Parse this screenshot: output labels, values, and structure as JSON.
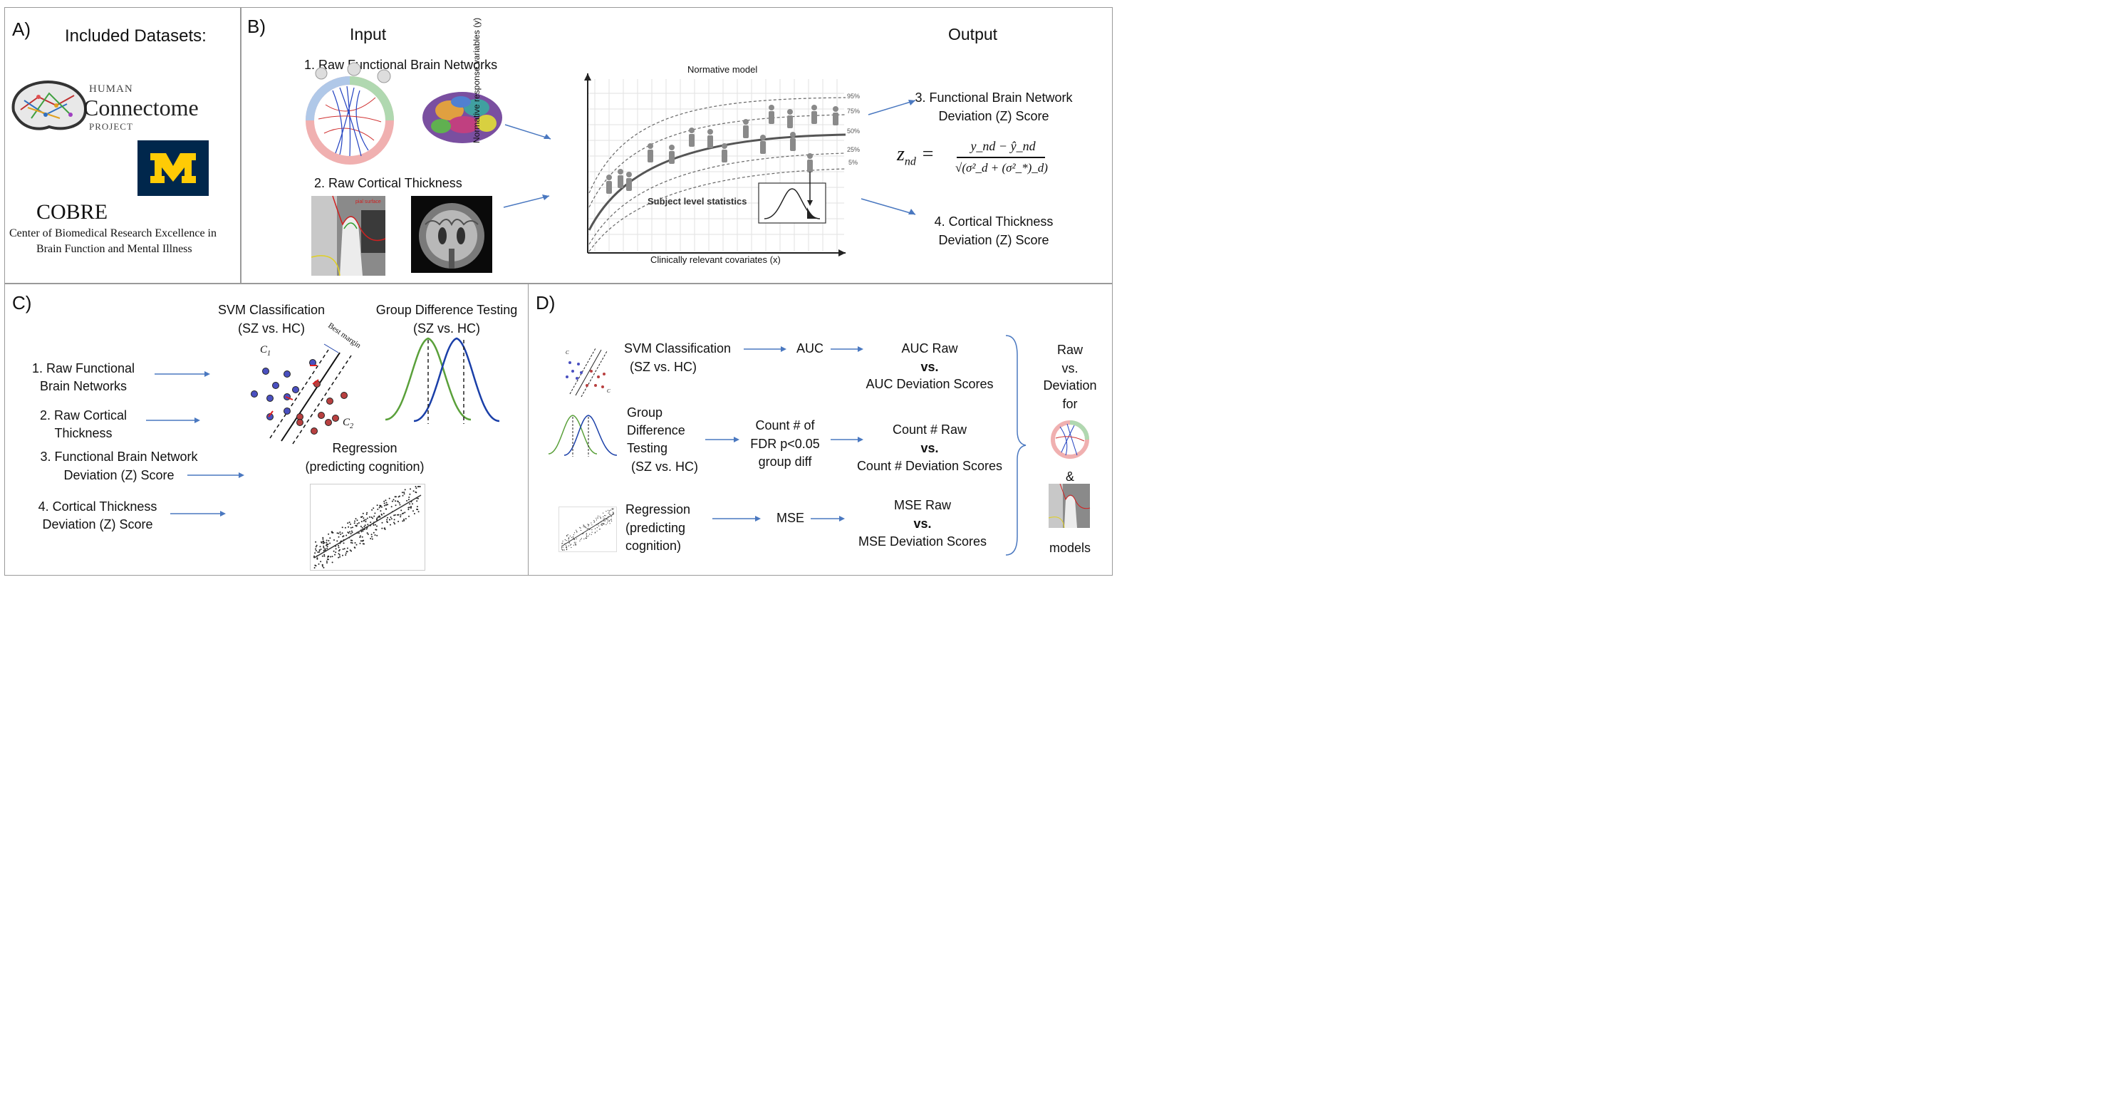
{
  "panels": {
    "a": {
      "label": "A)",
      "title": "Included Datasets:",
      "hcp": {
        "line1": "HUMAN",
        "line2": "Connectome",
        "line3": "PROJECT"
      },
      "cobre": {
        "title": "COBRE",
        "line1": "Center of Biomedical Research Excellence in",
        "line2": "Brain Function and Mental Illness"
      }
    },
    "b": {
      "label": "B)",
      "input": "Input",
      "output": "Output",
      "item1": "1. Raw Functional Brain Networks",
      "item2": "2. Raw Cortical Thickness",
      "item2_tag": "pial surface",
      "norm_title": "Normative model",
      "y_axis": "Normative response variables (y)",
      "x_axis": "Clinically relevant covariates (x)",
      "percentiles": [
        "95%",
        "75%",
        "50%",
        "25%",
        "5%"
      ],
      "subject_stats": "Subject level statistics",
      "out3_l1": "3. Functional Brain Network",
      "out3_l2": "Deviation (Z) Score",
      "out4_l1": "4. Cortical Thickness",
      "out4_l2": "Deviation (Z) Score",
      "formula": {
        "lhs": "z",
        "lhs_sub": "nd",
        "num": "y_nd − ŷ_nd",
        "den": "√(σ²_d + (σ²_*)_d)"
      }
    },
    "c": {
      "label": "C)",
      "inputs": [
        {
          "l1": "1. Raw Functional",
          "l2": "Brain Networks"
        },
        {
          "l1": "2. Raw Cortical",
          "l2": "Thickness"
        },
        {
          "l1": "3. Functional Brain Network",
          "l2": "Deviation (Z) Score"
        },
        {
          "l1": "4. Cortical Thickness",
          "l2": "Deviation (Z) Score"
        }
      ],
      "svm_l1": "SVM Classification",
      "svm_l2": "(SZ vs. HC)",
      "svm_c1": "C",
      "svm_c1_sub": "1",
      "svm_c2": "C",
      "svm_c2_sub": "2",
      "svm_margin": "Best margin",
      "group_l1": "Group Difference Testing",
      "group_l2": "(SZ vs. HC)",
      "reg_l1": "Regression",
      "reg_l2": "(predicting cognition)"
    },
    "d": {
      "label": "D)",
      "rows": [
        {
          "method": [
            "SVM Classification",
            "(SZ vs. HC)"
          ],
          "metric": [
            "AUC"
          ],
          "compare": [
            "AUC Raw",
            "vs.",
            "AUC Deviation Scores"
          ]
        },
        {
          "method": [
            "Group",
            "Difference",
            "Testing",
            "(SZ vs. HC)"
          ],
          "metric": [
            "Count # of",
            "FDR p<0.05",
            "group diff"
          ],
          "compare": [
            "Count # Raw",
            "vs.",
            "Count # Deviation Scores"
          ]
        },
        {
          "method": [
            "Regression",
            "(predicting",
            "cognition)"
          ],
          "metric": [
            "MSE"
          ],
          "compare": [
            "MSE Raw",
            "vs.",
            "MSE Deviation Scores"
          ]
        }
      ],
      "summary": {
        "l1": "Raw",
        "l2": "vs.",
        "l3": "Deviation",
        "l4": "for",
        "amp": "&",
        "models": "models"
      }
    }
  },
  "colors": {
    "arrow": "#4a78c0",
    "green": "#5aa03a",
    "blue": "#1a3fa8",
    "umich_blue": "#00274c",
    "umich_maize": "#ffcb05",
    "red": "#b03030"
  }
}
